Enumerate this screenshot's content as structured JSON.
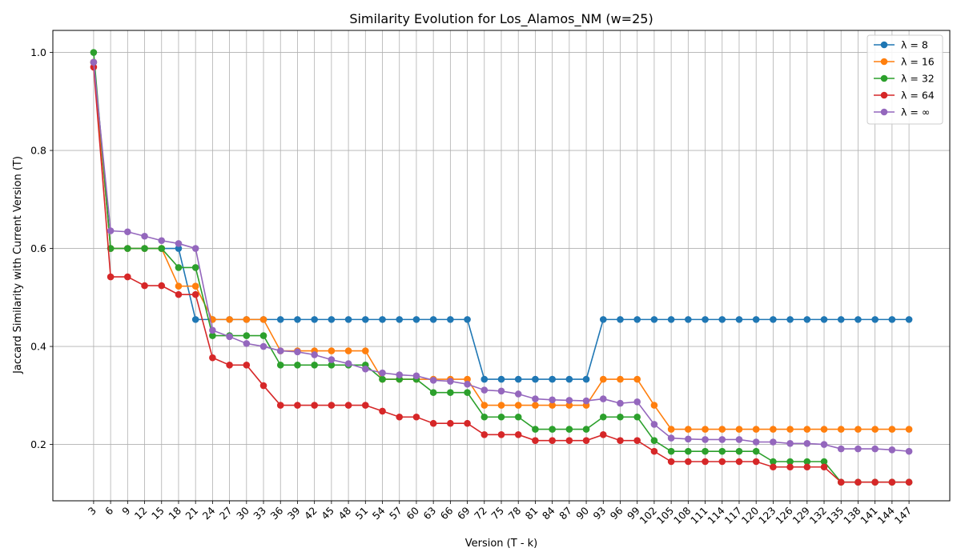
{
  "chart_data": {
    "type": "line",
    "title": "Similarity Evolution for Los_Alamos_NM (w=25)",
    "xlabel": "Version (T - k)",
    "ylabel": "Jaccard Similarity with Current Version (T)",
    "ylim": [
      0.085,
      1.045
    ],
    "yticks": [
      0.2,
      0.4,
      0.6,
      0.8,
      1.0
    ],
    "ytick_labels": [
      "0.2",
      "0.4",
      "0.6",
      "0.8",
      "1.0"
    ],
    "grid": true,
    "legend_position": "top-right",
    "x": [
      3,
      6,
      9,
      12,
      15,
      18,
      21,
      24,
      27,
      30,
      33,
      36,
      39,
      42,
      45,
      48,
      51,
      54,
      57,
      60,
      63,
      66,
      69,
      72,
      75,
      78,
      81,
      84,
      87,
      90,
      93,
      96,
      99,
      102,
      105,
      108,
      111,
      114,
      117,
      120,
      123,
      126,
      129,
      132,
      135,
      138,
      141,
      144,
      147
    ],
    "series": [
      {
        "name": "λ = 8",
        "color": "#1f77b4",
        "values": [
          0.98,
          0.6,
          0.6,
          0.6,
          0.6,
          0.6,
          0.455,
          0.455,
          0.455,
          0.455,
          0.455,
          0.455,
          0.455,
          0.455,
          0.455,
          0.455,
          0.455,
          0.455,
          0.455,
          0.455,
          0.455,
          0.455,
          0.455,
          0.333,
          0.333,
          0.333,
          0.333,
          0.333,
          0.333,
          0.333,
          0.455,
          0.455,
          0.455,
          0.455,
          0.455,
          0.455,
          0.455,
          0.455,
          0.455,
          0.455,
          0.455,
          0.455,
          0.455,
          0.455,
          0.455,
          0.455,
          0.455,
          0.455,
          0.455
        ]
      },
      {
        "name": "λ = 16",
        "color": "#ff7f0e",
        "values": [
          0.98,
          0.6,
          0.6,
          0.6,
          0.6,
          0.523,
          0.523,
          0.455,
          0.455,
          0.455,
          0.455,
          0.391,
          0.391,
          0.391,
          0.391,
          0.391,
          0.391,
          0.333,
          0.333,
          0.333,
          0.333,
          0.333,
          0.333,
          0.28,
          0.28,
          0.28,
          0.28,
          0.28,
          0.28,
          0.28,
          0.333,
          0.333,
          0.333,
          0.28,
          0.231,
          0.231,
          0.231,
          0.231,
          0.231,
          0.231,
          0.231,
          0.231,
          0.231,
          0.231,
          0.231,
          0.231,
          0.231,
          0.231,
          0.231
        ]
      },
      {
        "name": "λ = 32",
        "color": "#2ca02c",
        "values": [
          1.0,
          0.6,
          0.6,
          0.6,
          0.6,
          0.561,
          0.561,
          0.422,
          0.422,
          0.422,
          0.422,
          0.362,
          0.362,
          0.362,
          0.362,
          0.362,
          0.362,
          0.333,
          0.333,
          0.333,
          0.306,
          0.306,
          0.306,
          0.256,
          0.256,
          0.256,
          0.231,
          0.231,
          0.231,
          0.231,
          0.256,
          0.256,
          0.256,
          0.208,
          0.186,
          0.186,
          0.186,
          0.186,
          0.186,
          0.186,
          0.165,
          0.165,
          0.165,
          0.165,
          0.123,
          0.123,
          0.123,
          0.123,
          0.123
        ]
      },
      {
        "name": "λ = 64",
        "color": "#d62728",
        "values": [
          0.97,
          0.542,
          0.542,
          0.524,
          0.524,
          0.506,
          0.506,
          0.377,
          0.362,
          0.362,
          0.32,
          0.28,
          0.28,
          0.28,
          0.28,
          0.28,
          0.28,
          0.268,
          0.256,
          0.256,
          0.243,
          0.243,
          0.243,
          0.22,
          0.22,
          0.22,
          0.208,
          0.208,
          0.208,
          0.208,
          0.22,
          0.208,
          0.208,
          0.186,
          0.165,
          0.165,
          0.165,
          0.165,
          0.165,
          0.165,
          0.154,
          0.154,
          0.154,
          0.154,
          0.123,
          0.123,
          0.123,
          0.123,
          0.123
        ]
      },
      {
        "name": "λ = ∞",
        "color": "#9467bd",
        "values": [
          0.98,
          0.636,
          0.634,
          0.625,
          0.616,
          0.61,
          0.6,
          0.433,
          0.42,
          0.406,
          0.4,
          0.391,
          0.389,
          0.383,
          0.373,
          0.365,
          0.354,
          0.346,
          0.342,
          0.34,
          0.331,
          0.329,
          0.323,
          0.311,
          0.309,
          0.303,
          0.293,
          0.291,
          0.29,
          0.289,
          0.293,
          0.284,
          0.287,
          0.241,
          0.213,
          0.211,
          0.21,
          0.21,
          0.21,
          0.205,
          0.205,
          0.202,
          0.202,
          0.2,
          0.191,
          0.191,
          0.191,
          0.189,
          0.186
        ]
      }
    ]
  }
}
